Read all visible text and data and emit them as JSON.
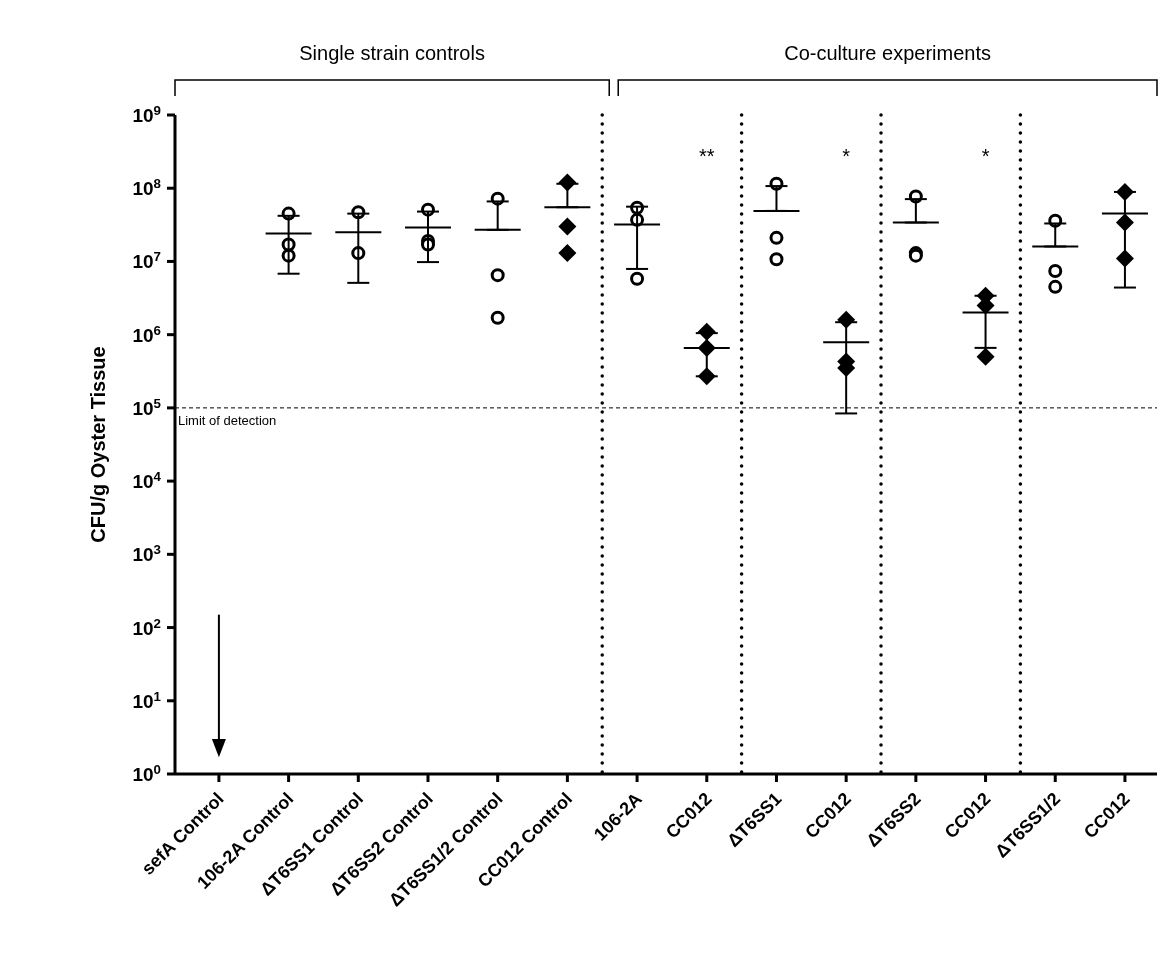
{
  "chart_data": {
    "type": "scatter",
    "ylabel": "CFU/g Oyster Tissue",
    "categories": [
      "sefA Control",
      "106-2A Control",
      "ΔT6SS1 Control",
      "ΔT6SS2 Control",
      "ΔT6SS1/2 Control",
      "CC012 Control",
      "106-2A",
      "CC012",
      "ΔT6SS1",
      "CC012",
      "ΔT6SS2",
      "CC012",
      "ΔT6SS1/2",
      "CC012"
    ],
    "log": true,
    "ylim": [
      1,
      1000000000
    ],
    "yticks": [
      {
        "value": 1,
        "label": "10$^{0}$"
      },
      {
        "value": 10,
        "label": "10$^{1}$"
      },
      {
        "value": 100,
        "label": "10$^{2}$"
      },
      {
        "value": 1000,
        "label": "10$^{3}$"
      },
      {
        "value": 10000,
        "label": "10$^{4}$"
      },
      {
        "value": 100000,
        "label": "10$^{5}$"
      },
      {
        "value": 1000000,
        "label": "10$^{6}$"
      },
      {
        "value": 10000000,
        "label": "10$^{7}$"
      },
      {
        "value": 100000000,
        "label": "10$^{8}$"
      },
      {
        "value": 1000000000,
        "label": "10$^{9}$"
      }
    ],
    "grid": false,
    "legend": false,
    "series": [
      {
        "type": "scatter",
        "marker": "circle",
        "color": "#000000",
        "values": [
          null,
          45000000.0,
          47000000.0,
          51000000.0,
          72000000.0,
          null,
          54000000.0,
          null,
          115000000.0,
          null,
          77000000.0,
          null,
          36000000.0,
          null
        ]
      },
      {
        "type": "scatter",
        "marker": "circle",
        "color": "#000000",
        "values": [
          null,
          17000000.0,
          13000000.0,
          19000000.0,
          6500000.0,
          null,
          37000000.0,
          null,
          21000000.0,
          null,
          13000000.0,
          null,
          7400000.0,
          null
        ]
      },
      {
        "type": "scatter",
        "marker": "circle",
        "color": "#000000",
        "values": [
          null,
          12000000.0,
          null,
          17000000.0,
          1700000.0,
          null,
          5800000.0,
          null,
          10700000.0,
          null,
          12000000.0,
          null,
          4500000.0,
          null
        ]
      },
      {
        "type": "scatter",
        "marker": "diamond",
        "color": "#000000",
        "values": [
          null,
          null,
          null,
          null,
          null,
          120000000.0,
          null,
          1100000.0,
          null,
          1600000.0,
          null,
          3400000.0,
          null,
          89000000.0
        ]
      },
      {
        "type": "scatter",
        "marker": "diamond",
        "color": "#000000",
        "values": [
          null,
          null,
          null,
          null,
          null,
          30000000.0,
          null,
          660000.0,
          null,
          430000.0,
          null,
          2500000.0,
          null,
          34000000.0
        ]
      },
      {
        "type": "scatter",
        "marker": "diamond",
        "color": "#000000",
        "values": [
          null,
          null,
          null,
          null,
          null,
          13000000.0,
          null,
          270000.0,
          null,
          350000.0,
          null,
          500000.0,
          null,
          11000000.0
        ]
      },
      {
        "type": "box",
        "color": "#000000",
        "boxes": [
          null,
          {
            "low": 6800000.0,
            "q1": 24000000.0,
            "median": 24000000.0,
            "q3": 24000000.0,
            "high": 42000000.0
          },
          {
            "low": 5100000.0,
            "q1": 25000000.0,
            "median": 25000000.0,
            "q3": 25000000.0,
            "high": 45000000.0
          },
          {
            "low": 9800000.0,
            "q1": 29000000.0,
            "median": 29000000.0,
            "q3": 29000000.0,
            "high": 48000000.0
          },
          {
            "low": 27000000.0,
            "q1": 27000000.0,
            "median": 27000000.0,
            "q3": 27000000.0,
            "high": 66000000.0
          },
          {
            "low": 55000000.0,
            "q1": 55000000.0,
            "median": 55000000.0,
            "q3": 55000000.0,
            "high": 115000000.0
          },
          {
            "low": 7900000.0,
            "q1": 32000000.0,
            "median": 32000000.0,
            "q3": 32000000.0,
            "high": 56000000.0
          },
          {
            "low": 270000.0,
            "q1": 660000.0,
            "median": 660000.0,
            "q3": 660000.0,
            "high": 1050000.0
          },
          {
            "low": 49000000.0,
            "q1": 49000000.0,
            "median": 49000000.0,
            "q3": 49000000.0,
            "high": 107000000.0
          },
          {
            "low": 84000.0,
            "q1": 790000.0,
            "median": 790000.0,
            "q3": 790000.0,
            "high": 1480000.0
          },
          {
            "low": 34000000.0,
            "q1": 34000000.0,
            "median": 34000000.0,
            "q3": 34000000.0,
            "high": 71000000.0
          },
          {
            "low": 660000.0,
            "q1": 2000000.0,
            "median": 2000000.0,
            "q3": 2000000.0,
            "high": 3400000.0
          },
          {
            "low": 16000000.0,
            "q1": 16000000.0,
            "median": 16000000.0,
            "q3": 16000000.0,
            "high": 33000000.0
          },
          {
            "low": 4400000.0,
            "q1": 45000000.0,
            "median": 45000000.0,
            "q3": 45000000.0,
            "high": 89000000.0
          }
        ]
      }
    ],
    "ref_lines": [
      {
        "axis": "y",
        "value": 100000,
        "label": "Limit of detection",
        "line_style": "dashed"
      }
    ],
    "annotations": [
      "Single strain controls",
      "Co-culture experiments",
      "**",
      "*",
      "*"
    ]
  }
}
